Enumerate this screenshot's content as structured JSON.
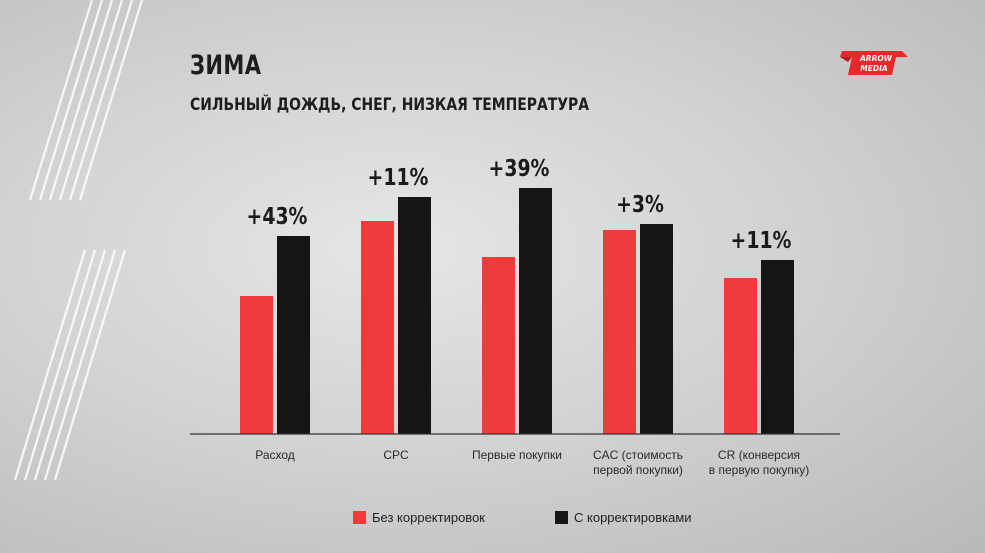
{
  "title": "ЗИМА",
  "subtitle": "СИЛЬНЫЙ ДОЖДЬ, СНЕГ, НИЗКАЯ ТЕМПЕРАТУРА",
  "logo": {
    "line1": "ARROW",
    "line2": "MEDIA"
  },
  "colors": {
    "series1": "#ef3b3b",
    "series2": "#151515",
    "axis": "#333333"
  },
  "chart_data": {
    "type": "bar",
    "categories": [
      "Расход",
      "CPC",
      "Первые покупки",
      "CAC (стоимость первой покупки)",
      "CR (конверсия в первую покупку)"
    ],
    "category_lines": [
      [
        "Расход"
      ],
      [
        "CPC"
      ],
      [
        "Первые покупки"
      ],
      [
        "CAC (стоимость",
        "первой покупки)"
      ],
      [
        "CR (конверсия",
        "в первую покупку)"
      ]
    ],
    "series": [
      {
        "name": "Без корректировок",
        "values": [
          46,
          71,
          59,
          68,
          52
        ]
      },
      {
        "name": "С корректировками",
        "values": [
          66,
          79,
          82,
          70,
          58
        ]
      }
    ],
    "annotations": [
      "+43%",
      "+11%",
      "+39%",
      "+3%",
      "+11%"
    ],
    "ylim": [
      0,
      100
    ],
    "grid": false,
    "legend_position": "bottom"
  }
}
